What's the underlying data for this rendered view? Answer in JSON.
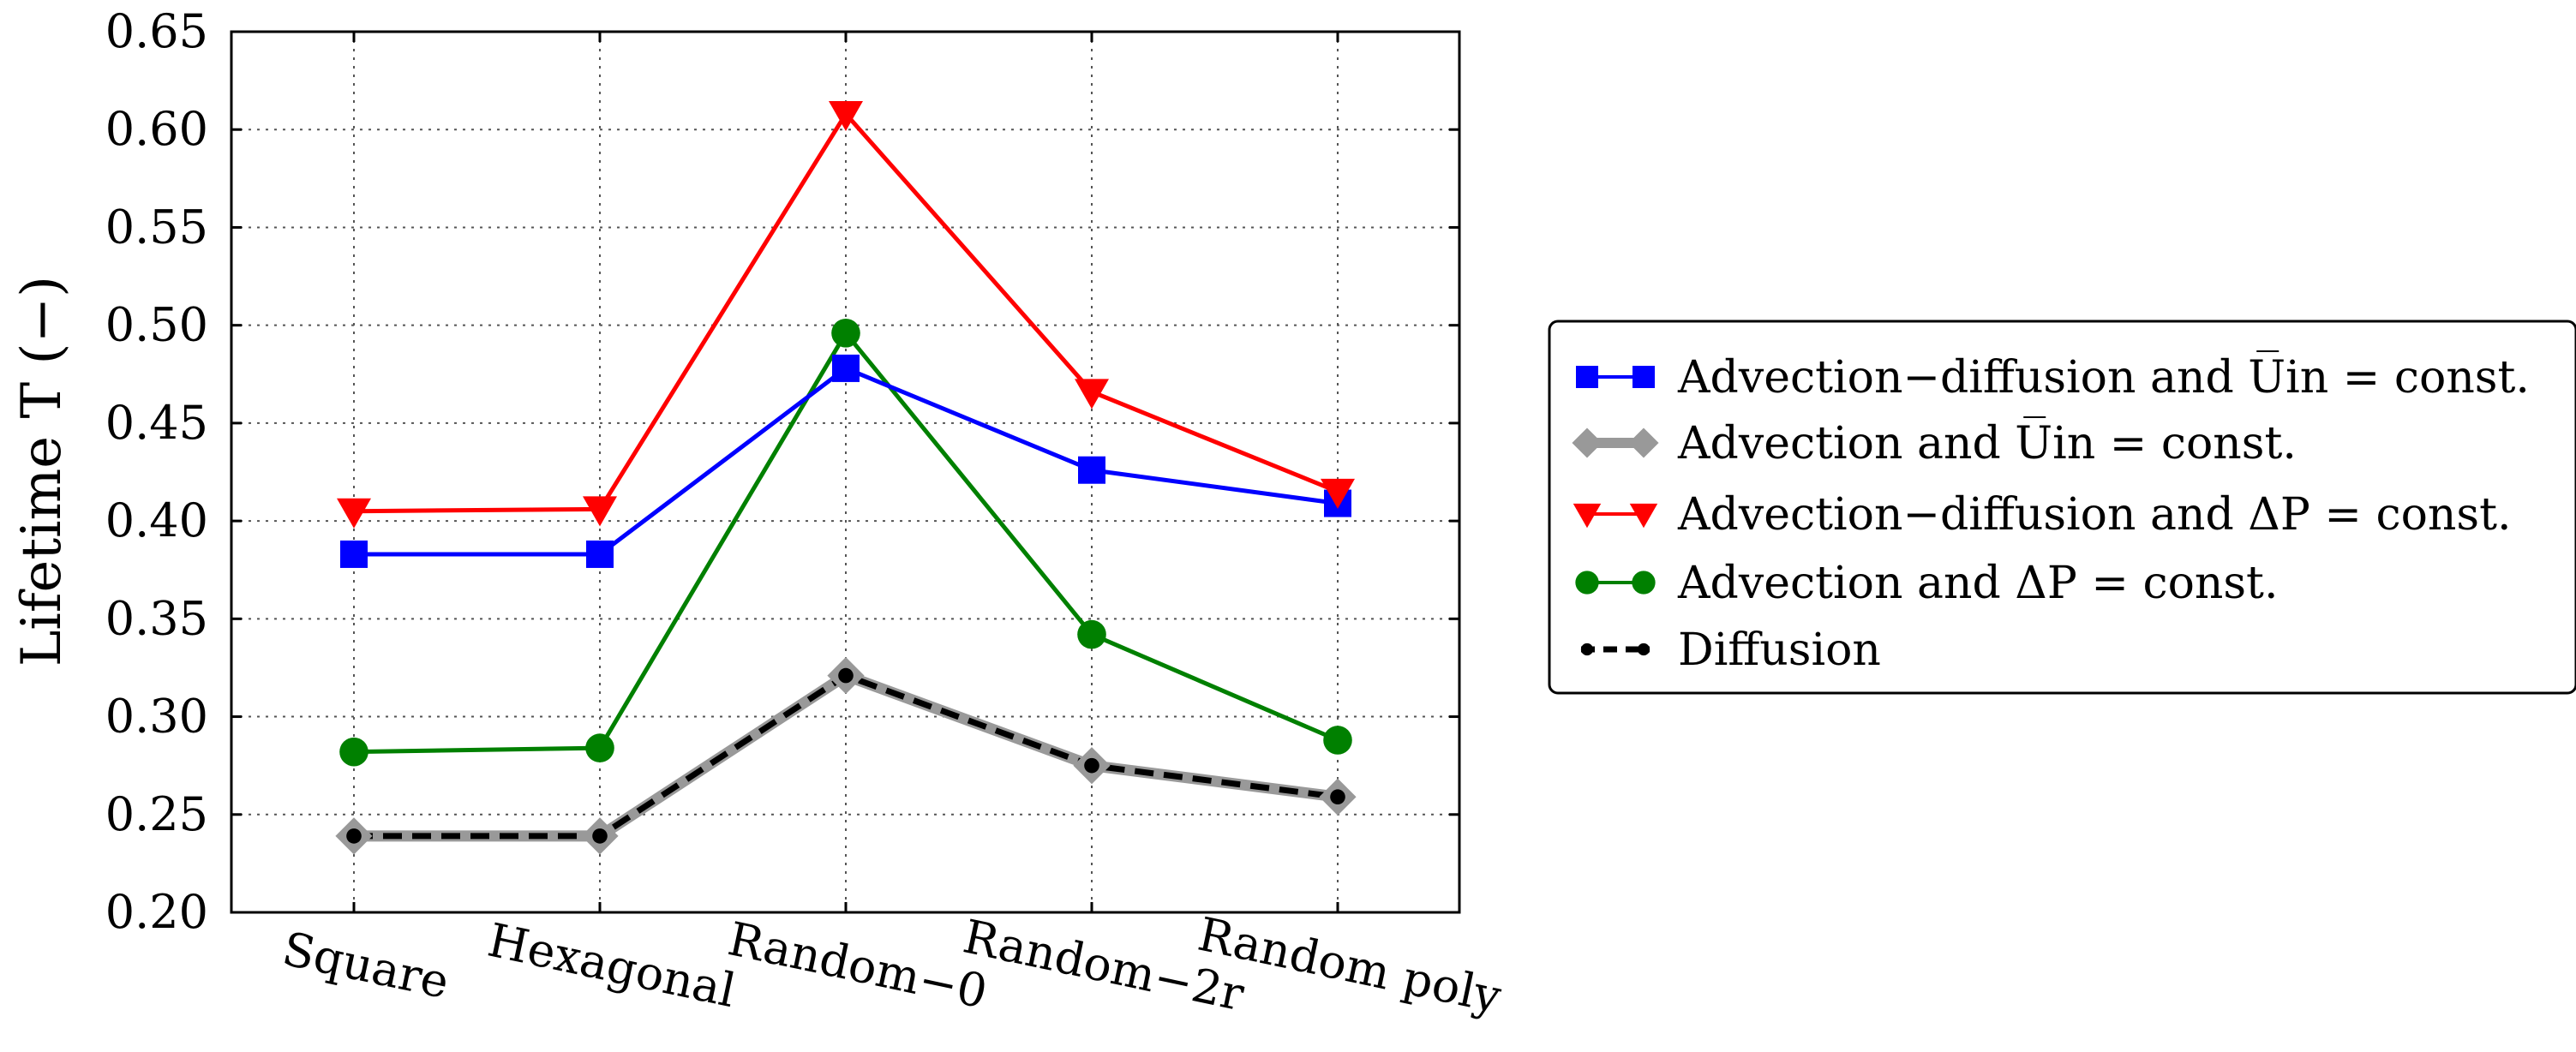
{
  "chart_data": {
    "type": "line",
    "title": "",
    "xlabel": "",
    "ylabel": "Lifetime T (−)",
    "ylim": [
      0.2,
      0.65
    ],
    "yticks": [
      "0.20",
      "0.25",
      "0.30",
      "0.35",
      "0.40",
      "0.45",
      "0.50",
      "0.55",
      "0.60",
      "0.65"
    ],
    "categories": [
      "Square",
      "Hexagonal",
      "Random−0",
      "Random−2r",
      "Random poly"
    ],
    "grid": true,
    "legend_position": "right",
    "series": [
      {
        "name": "Advection−diffusion and U̅in = const.",
        "color": "#0000ff",
        "marker": "square",
        "line": "solid",
        "values": [
          0.383,
          0.383,
          0.478,
          0.426,
          0.409
        ]
      },
      {
        "name": "Advection and U̅in = const.",
        "color": "#999999",
        "marker": "diamond",
        "line": "solid",
        "values": [
          0.239,
          0.239,
          0.321,
          0.275,
          0.259
        ]
      },
      {
        "name": "Advection−diffusion and ΔP = const.",
        "color": "#ff0000",
        "marker": "triangle-down",
        "line": "solid",
        "values": [
          0.405,
          0.406,
          0.608,
          0.466,
          0.415
        ]
      },
      {
        "name": "Advection and ΔP = const.",
        "color": "#008000",
        "marker": "circle",
        "line": "solid",
        "values": [
          0.282,
          0.284,
          0.496,
          0.342,
          0.288
        ]
      },
      {
        "name": "Diffusion",
        "color": "#000000",
        "marker": "dot",
        "line": "dashed",
        "values": [
          0.239,
          0.239,
          0.321,
          0.275,
          0.259
        ]
      }
    ]
  }
}
